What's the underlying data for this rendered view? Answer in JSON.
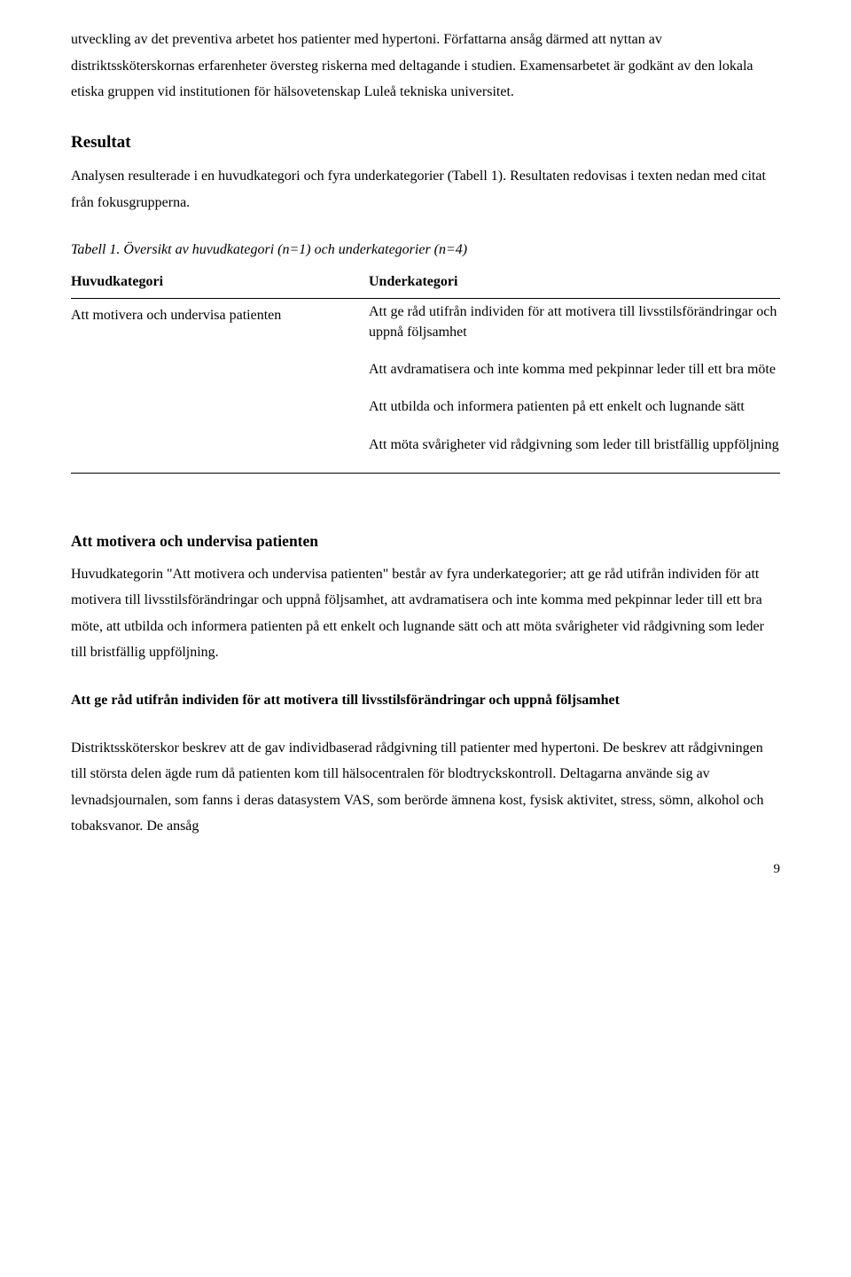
{
  "intro_para": "utveckling av det preventiva arbetet hos patienter med hypertoni. Författarna ansåg därmed att nyttan av distriktssköterskornas erfarenheter översteg riskerna med deltagande i studien. Examensarbetet är godkänt av den lokala etiska gruppen vid institutionen för hälsovetenskap Luleå tekniska universitet.",
  "resultat_heading": "Resultat",
  "resultat_para": "Analysen resulterade i en huvudkategori och fyra underkategorier (Tabell 1). Resultaten redovisas i texten nedan med citat från fokusgrupperna.",
  "table_title_prefix": "Tabell 1. ",
  "table_title_rest": "Översikt av huvudkategori (n=1) och underkategorier (n=4)",
  "table_header_left": "Huvudkategori",
  "table_header_right": "Underkategori",
  "table_left_cell": "Att motivera och undervisa patienten",
  "table_right_items": [
    "Att ge råd utifrån individen för att motivera till livsstilsförändringar och uppnå följsamhet",
    "Att avdramatisera och inte komma med pekpinnar leder till ett bra möte",
    "Att utbilda och informera patienten på ett enkelt och lugnande sätt",
    "Att möta svårigheter vid rådgivning som leder till bristfällig uppföljning"
  ],
  "section_heading": "Att motivera och undervisa patienten",
  "section_para": "Huvudkategorin \"Att motivera och undervisa patienten\" består av fyra underkategorier; att ge råd utifrån individen för att motivera till livsstilsförändringar och uppnå följsamhet, att avdramatisera och inte komma med pekpinnar leder till ett bra möte, att utbilda och informera patienten på ett enkelt och lugnande sätt och att möta svårigheter vid rådgivning som leder till bristfällig uppföljning.",
  "sub_heading": "Att ge råd utifrån individen för att motivera till livsstilsförändringar och uppnå följsamhet",
  "sub_para": "Distriktssköterskor beskrev att de gav individbaserad rådgivning till patienter med hypertoni. De beskrev att rådgivningen till största delen ägde rum då patienten kom till hälsocentralen för blodtryckskontroll. Deltagarna använde sig av levnadsjournalen, som fanns i deras datasystem VAS, som berörde ämnena kost, fysisk aktivitet, stress, sömn, alkohol och tobaksvanor. De ansåg",
  "page_number": "9"
}
